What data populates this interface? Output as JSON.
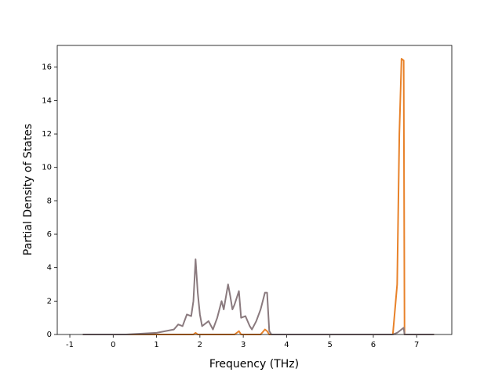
{
  "chart_data": {
    "type": "line",
    "xlabel": "Frequency (THz)",
    "ylabel": "Partial Density of States",
    "x": [
      -0.7,
      0.3,
      1.0,
      1.4,
      1.5,
      1.6,
      1.7,
      1.8,
      1.85,
      1.9,
      1.95,
      2.0,
      2.05,
      2.15,
      2.2,
      2.3,
      2.4,
      2.5,
      2.55,
      2.65,
      2.7,
      2.75,
      2.8,
      2.9,
      2.95,
      3.05,
      3.15,
      3.2,
      3.3,
      3.4,
      3.5,
      3.55,
      3.6,
      3.65,
      6.45,
      6.55,
      6.6,
      6.65,
      6.7,
      6.72,
      7.4
    ],
    "series": [
      {
        "color": "#e8822a",
        "values": [
          0,
          0,
          0,
          0,
          0,
          0,
          0,
          0,
          0,
          0.1,
          0,
          0,
          0,
          0,
          0,
          0,
          0,
          0,
          0,
          0,
          0,
          0,
          0,
          0.2,
          0,
          0,
          0,
          0,
          0,
          0,
          0.3,
          0.2,
          0,
          0,
          0,
          3,
          12,
          16.5,
          16.4,
          0,
          0
        ]
      },
      {
        "color": "#8a7a7e",
        "values": [
          0,
          0,
          0.1,
          0.3,
          0.6,
          0.5,
          1.2,
          1.1,
          2.0,
          4.5,
          2.5,
          1.2,
          0.5,
          0.7,
          0.8,
          0.3,
          1.0,
          2.0,
          1.5,
          3.0,
          2.3,
          1.5,
          1.8,
          2.6,
          1.0,
          1.1,
          0.5,
          0.3,
          0.8,
          1.5,
          2.5,
          2.5,
          0.2,
          0,
          0,
          0.1,
          0.2,
          0.3,
          0.4,
          0,
          0
        ]
      }
    ],
    "xlim": [
      -1.29,
      7.81
    ],
    "ylim": [
      0,
      17.3
    ],
    "xticks": [
      -1,
      0,
      1,
      2,
      3,
      4,
      5,
      6,
      7
    ],
    "yticks": [
      0,
      2,
      4,
      6,
      8,
      10,
      12,
      14,
      16
    ]
  }
}
